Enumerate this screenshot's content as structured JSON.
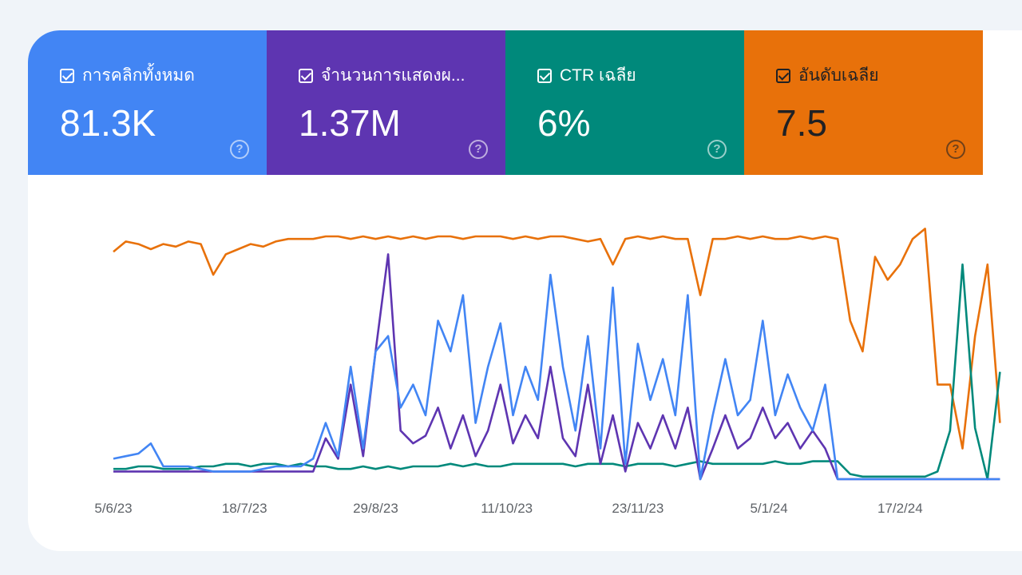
{
  "cards": [
    {
      "label": "การคลิกทั้งหมด",
      "value": "81.3K",
      "color": "#4285f4",
      "text_color": "#ffffff"
    },
    {
      "label": "จำนวนการแสดงผ...",
      "value": "1.37M",
      "color": "#5e35b1",
      "text_color": "#ffffff"
    },
    {
      "label": "CTR เฉลีย",
      "value": "6%",
      "color": "#00897b",
      "text_color": "#ffffff"
    },
    {
      "label": "อันดับเฉลีย",
      "value": "7.5",
      "color": "#e8710a",
      "text_color": "#202124"
    }
  ],
  "help_glyph": "?",
  "chart_data": {
    "type": "line",
    "x_step_days": 4,
    "xticks": [
      "5/6/23",
      "18/7/23",
      "29/8/23",
      "11/10/23",
      "23/11/23",
      "5/1/24",
      "17/2/24"
    ],
    "xtick_day_interval": 42,
    "ylim": [
      0,
      100
    ],
    "grid": false,
    "series": [
      {
        "name": "อันดับเฉลีย",
        "color": "#e8710a",
        "values": [
          89,
          93,
          92,
          90,
          92,
          91,
          93,
          92,
          80,
          88,
          90,
          92,
          91,
          93,
          94,
          94,
          94,
          95,
          95,
          94,
          95,
          94,
          95,
          94,
          95,
          94,
          95,
          95,
          94,
          95,
          95,
          95,
          94,
          95,
          94,
          95,
          95,
          94,
          93,
          94,
          84,
          94,
          95,
          94,
          95,
          94,
          94,
          72,
          94,
          94,
          95,
          94,
          95,
          94,
          94,
          95,
          94,
          95,
          94,
          62,
          50,
          87,
          78,
          84,
          94,
          98,
          37,
          37,
          12,
          56,
          84,
          22
        ]
      },
      {
        "name": "CTR เฉลีย",
        "color": "#00897b",
        "values": [
          4,
          4,
          5,
          5,
          4,
          4,
          4,
          5,
          5,
          6,
          6,
          5,
          6,
          6,
          5,
          6,
          5,
          5,
          4,
          4,
          5,
          4,
          5,
          4,
          5,
          5,
          5,
          6,
          5,
          6,
          5,
          5,
          6,
          6,
          6,
          6,
          6,
          5,
          6,
          6,
          6,
          5,
          6,
          6,
          6,
          5,
          6,
          7,
          6,
          6,
          6,
          6,
          6,
          7,
          6,
          6,
          7,
          7,
          7,
          2,
          1,
          1,
          1,
          1,
          1,
          1,
          3,
          19,
          84,
          20,
          0,
          42
        ]
      },
      {
        "name": "จำนวนการแสดงผล",
        "color": "#5e35b1",
        "values": [
          3,
          3,
          3,
          3,
          3,
          3,
          3,
          3,
          3,
          3,
          3,
          3,
          3,
          3,
          3,
          3,
          3,
          16,
          8,
          37,
          9,
          50,
          88,
          19,
          14,
          17,
          28,
          12,
          25,
          9,
          19,
          37,
          14,
          25,
          16,
          44,
          16,
          9,
          37,
          6,
          25,
          3,
          22,
          12,
          25,
          12,
          28,
          0,
          12,
          25,
          12,
          16,
          28,
          16,
          22,
          12,
          19,
          12,
          0,
          0,
          0,
          0,
          0,
          0,
          0,
          0,
          0,
          0,
          0,
          0,
          0,
          0
        ]
      },
      {
        "name": "การคลิกทั้งหมด",
        "color": "#4285f4",
        "values": [
          8,
          9,
          10,
          14,
          5,
          5,
          5,
          4,
          3,
          3,
          3,
          3,
          4,
          5,
          5,
          5,
          8,
          22,
          9,
          44,
          12,
          50,
          56,
          28,
          37,
          25,
          62,
          50,
          72,
          22,
          44,
          61,
          25,
          44,
          31,
          80,
          44,
          19,
          56,
          12,
          75,
          6,
          53,
          31,
          47,
          25,
          72,
          0,
          25,
          47,
          25,
          31,
          62,
          25,
          41,
          28,
          19,
          37,
          0,
          0,
          0,
          0,
          0,
          0,
          0,
          0,
          0,
          0,
          0,
          0,
          0,
          0
        ]
      }
    ]
  }
}
